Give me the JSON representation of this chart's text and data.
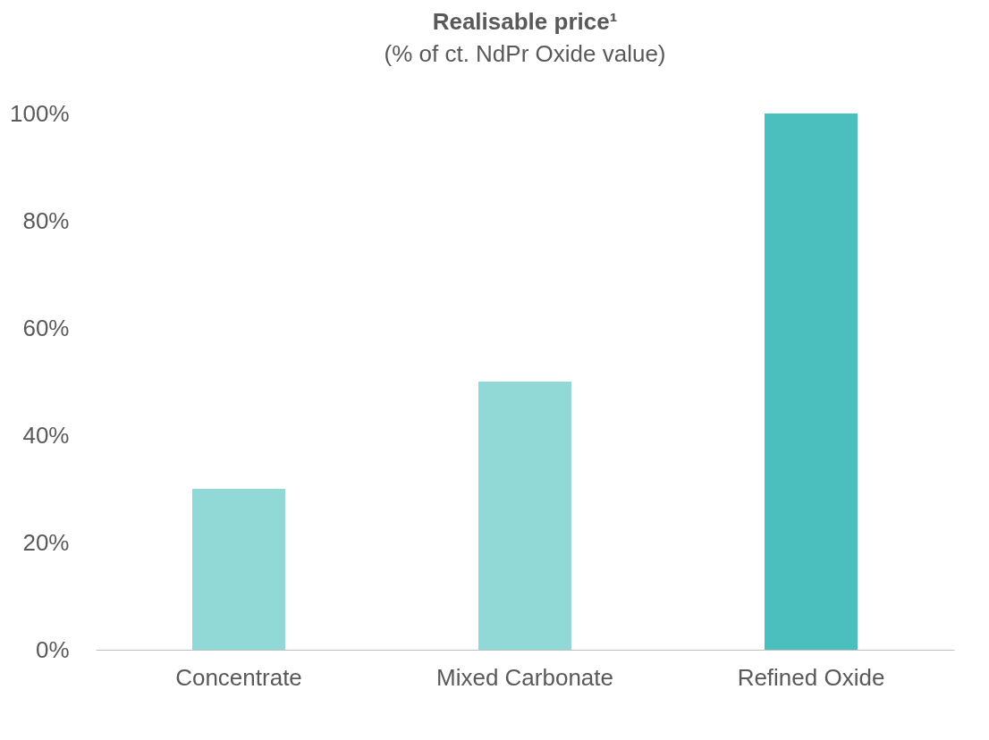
{
  "chart_data": {
    "type": "bar",
    "title": "Realisable price¹",
    "subtitle": "(% of ct. NdPr Oxide value)",
    "categories": [
      "Concentrate",
      "Mixed Carbonate",
      "Refined Oxide"
    ],
    "values": [
      30,
      50,
      100
    ],
    "colors": [
      "#90d9d7",
      "#90d9d7",
      "#4bbfbe"
    ],
    "ylim": [
      0,
      100
    ],
    "yticks": [
      {
        "value": 0,
        "label": "0%"
      },
      {
        "value": 20,
        "label": "20%"
      },
      {
        "value": 40,
        "label": "40%"
      },
      {
        "value": 60,
        "label": "60%"
      },
      {
        "value": 80,
        "label": "80%"
      },
      {
        "value": 100,
        "label": "100%"
      }
    ],
    "grid": false
  }
}
